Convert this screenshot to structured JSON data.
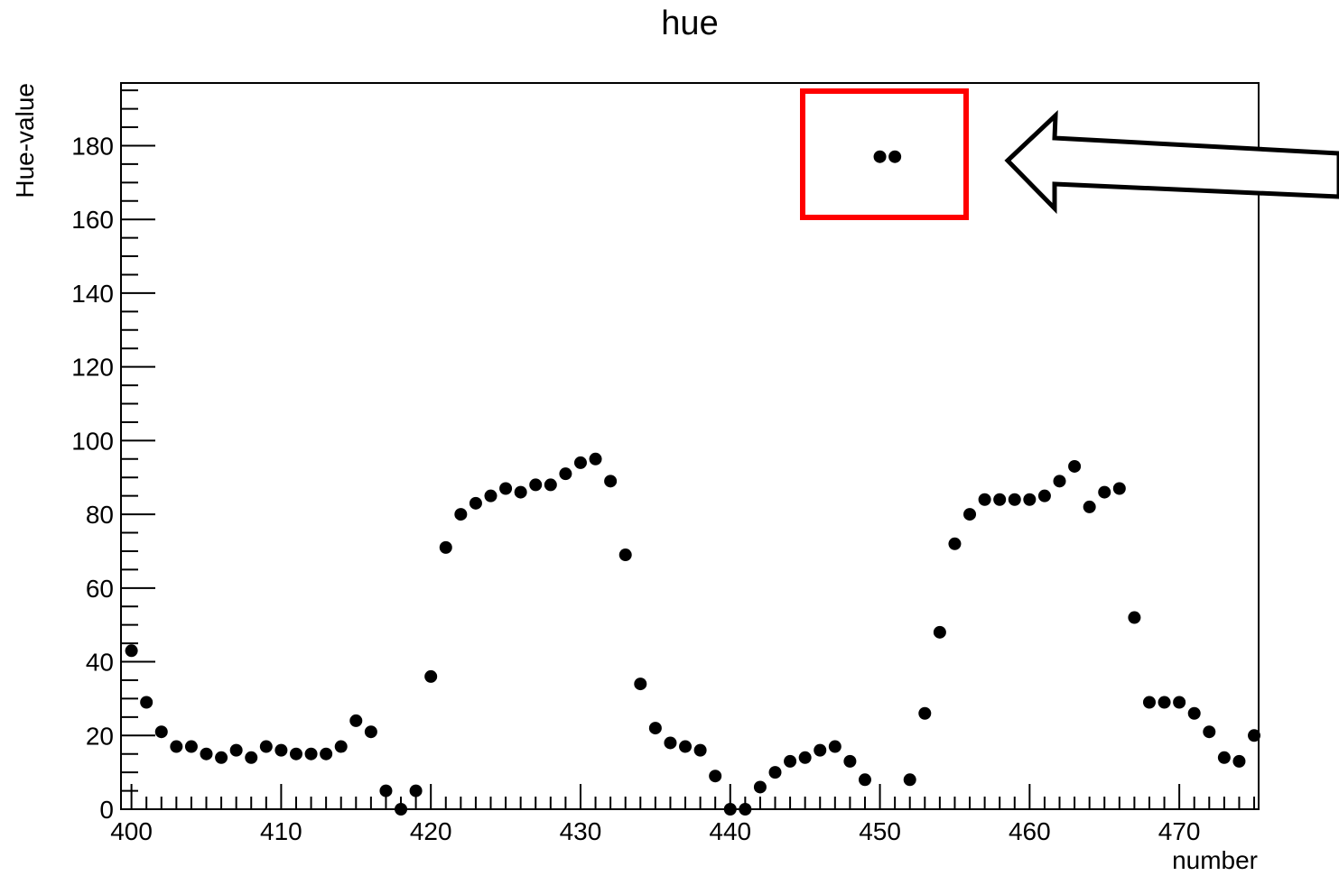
{
  "chart_data": {
    "type": "scatter",
    "title": "hue",
    "xlabel": "number",
    "ylabel": "Hue-value",
    "xlim": [
      399.3,
      475.3
    ],
    "ylim": [
      0,
      197
    ],
    "x_ticks": [
      400,
      410,
      420,
      430,
      440,
      450,
      460,
      470
    ],
    "y_ticks": [
      0,
      20,
      40,
      60,
      80,
      100,
      120,
      140,
      160,
      180
    ],
    "grid": false,
    "legend": "none",
    "marker_color": "#000000",
    "series": [
      {
        "x": [
          400,
          401,
          402,
          403,
          404,
          405,
          406,
          407,
          408,
          409,
          410,
          411,
          412,
          413,
          414,
          415,
          416,
          417,
          418,
          419,
          420,
          421,
          422,
          423,
          424,
          425,
          426,
          427,
          428,
          429,
          430,
          431,
          432,
          433,
          434,
          435,
          436,
          437,
          438,
          439,
          440,
          441,
          442,
          443,
          444,
          445,
          446,
          447,
          448,
          449,
          450,
          451,
          452,
          453,
          454,
          455,
          456,
          457,
          458,
          459,
          460,
          461,
          462,
          463,
          464,
          465,
          466,
          467,
          468,
          469,
          470,
          471,
          472,
          473,
          474,
          475
        ],
        "y": [
          43,
          29,
          21,
          17,
          17,
          15,
          14,
          16,
          14,
          17,
          16,
          15,
          15,
          15,
          17,
          24,
          21,
          5,
          0,
          5,
          36,
          71,
          80,
          83,
          85,
          87,
          86,
          88,
          88,
          91,
          94,
          95,
          89,
          69,
          34,
          22,
          18,
          17,
          16,
          9,
          0,
          0,
          6,
          10,
          13,
          14,
          16,
          17,
          13,
          8,
          177,
          177,
          8,
          26,
          48,
          72,
          80,
          84,
          84,
          84,
          84,
          85,
          89,
          93,
          82,
          86,
          87,
          52,
          29,
          29,
          29,
          26,
          21,
          14,
          13,
          20
        ]
      }
    ],
    "annotations": [
      {
        "type": "rectangle",
        "color": "#ff0000",
        "encloses_x": [
          450,
          451
        ],
        "encloses_y": [
          177,
          177
        ]
      },
      {
        "type": "arrow",
        "direction": "left",
        "color": "#000000"
      }
    ]
  }
}
